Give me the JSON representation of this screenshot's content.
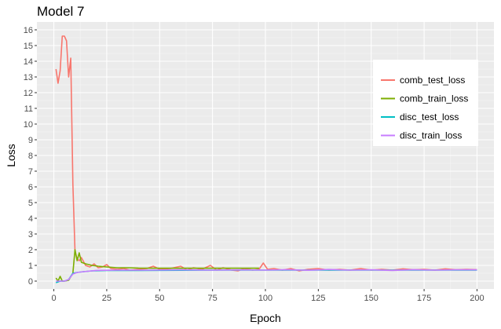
{
  "chart_data": {
    "type": "line",
    "title": "Model 7",
    "xlabel": "Epoch",
    "ylabel": "Loss",
    "xlim": [
      -8,
      208
    ],
    "ylim": [
      -0.5,
      16.5
    ],
    "x_ticks": [
      0,
      25,
      50,
      75,
      100,
      125,
      150,
      175,
      200
    ],
    "y_ticks": [
      0,
      1,
      2,
      3,
      4,
      5,
      6,
      7,
      8,
      9,
      10,
      11,
      12,
      13,
      14,
      15,
      16
    ],
    "grid": true,
    "legend_position": "right",
    "background": "#ebebeb",
    "series": [
      {
        "name": "comb_test_loss",
        "color": "#f8766d",
        "points": [
          [
            1,
            13.5
          ],
          [
            2,
            12.6
          ],
          [
            3,
            13.4
          ],
          [
            4,
            15.6
          ],
          [
            5,
            15.6
          ],
          [
            6,
            15.3
          ],
          [
            7,
            13.0
          ],
          [
            8,
            14.2
          ],
          [
            9,
            6.2
          ],
          [
            10,
            1.9
          ],
          [
            11,
            1.4
          ],
          [
            12,
            1.3
          ],
          [
            13,
            1.5
          ],
          [
            15,
            1.0
          ],
          [
            17,
            0.9
          ],
          [
            19,
            1.1
          ],
          [
            21,
            0.85
          ],
          [
            23,
            0.9
          ],
          [
            25,
            1.05
          ],
          [
            27,
            0.8
          ],
          [
            30,
            0.75
          ],
          [
            33,
            0.8
          ],
          [
            36,
            0.7
          ],
          [
            40,
            0.75
          ],
          [
            44,
            0.8
          ],
          [
            47,
            0.95
          ],
          [
            50,
            0.75
          ],
          [
            55,
            0.8
          ],
          [
            60,
            0.95
          ],
          [
            63,
            0.7
          ],
          [
            66,
            0.85
          ],
          [
            70,
            0.75
          ],
          [
            74,
            1.0
          ],
          [
            77,
            0.7
          ],
          [
            80,
            0.85
          ],
          [
            84,
            0.7
          ],
          [
            87,
            0.65
          ],
          [
            90,
            0.8
          ],
          [
            94,
            0.7
          ],
          [
            97,
            0.75
          ],
          [
            99,
            1.15
          ],
          [
            101,
            0.75
          ],
          [
            104,
            0.8
          ],
          [
            108,
            0.7
          ],
          [
            112,
            0.8
          ],
          [
            116,
            0.65
          ],
          [
            120,
            0.75
          ],
          [
            125,
            0.8
          ],
          [
            130,
            0.7
          ],
          [
            135,
            0.75
          ],
          [
            140,
            0.7
          ],
          [
            145,
            0.8
          ],
          [
            150,
            0.7
          ],
          [
            155,
            0.75
          ],
          [
            160,
            0.7
          ],
          [
            165,
            0.78
          ],
          [
            170,
            0.72
          ],
          [
            175,
            0.75
          ],
          [
            180,
            0.7
          ],
          [
            185,
            0.78
          ],
          [
            190,
            0.72
          ],
          [
            195,
            0.75
          ],
          [
            200,
            0.73
          ]
        ]
      },
      {
        "name": "comb_train_loss",
        "color": "#7cae00",
        "points": [
          [
            1,
            0.2
          ],
          [
            2,
            0.0
          ],
          [
            3,
            0.3
          ],
          [
            4,
            0.0
          ],
          [
            5,
            0.0
          ],
          [
            7,
            0.05
          ],
          [
            9,
            0.5
          ],
          [
            10,
            2.0
          ],
          [
            11,
            1.3
          ],
          [
            12,
            1.8
          ],
          [
            13,
            1.2
          ],
          [
            15,
            1.1
          ],
          [
            18,
            1.0
          ],
          [
            21,
            0.95
          ],
          [
            25,
            0.9
          ],
          [
            30,
            0.85
          ],
          [
            35,
            0.85
          ],
          [
            40,
            0.83
          ],
          [
            50,
            0.82
          ],
          [
            60,
            0.82
          ],
          [
            70,
            0.82
          ],
          [
            80,
            0.82
          ],
          [
            90,
            0.82
          ],
          [
            97,
            0.82
          ]
        ]
      },
      {
        "name": "disc_test_loss",
        "color": "#00bfc4",
        "points": [
          [
            1,
            -0.1
          ],
          [
            3,
            0.0
          ],
          [
            5,
            0.0
          ],
          [
            7,
            0.1
          ],
          [
            9,
            0.5
          ],
          [
            11,
            0.55
          ],
          [
            14,
            0.6
          ],
          [
            18,
            0.65
          ],
          [
            25,
            0.68
          ],
          [
            40,
            0.68
          ],
          [
            60,
            0.69
          ],
          [
            80,
            0.7
          ],
          [
            100,
            0.7
          ],
          [
            130,
            0.7
          ],
          [
            160,
            0.7
          ],
          [
            200,
            0.7
          ]
        ]
      },
      {
        "name": "disc_train_loss",
        "color": "#c77cff",
        "points": [
          [
            1,
            0.0
          ],
          [
            3,
            0.0
          ],
          [
            5,
            0.0
          ],
          [
            7,
            0.1
          ],
          [
            9,
            0.45
          ],
          [
            11,
            0.55
          ],
          [
            14,
            0.6
          ],
          [
            20,
            0.68
          ],
          [
            30,
            0.7
          ],
          [
            45,
            0.7
          ],
          [
            60,
            0.72
          ],
          [
            75,
            0.7
          ],
          [
            90,
            0.72
          ],
          [
            100,
            0.7
          ],
          [
            110,
            0.73
          ],
          [
            120,
            0.69
          ],
          [
            130,
            0.74
          ],
          [
            140,
            0.7
          ],
          [
            150,
            0.72
          ],
          [
            160,
            0.68
          ],
          [
            170,
            0.73
          ],
          [
            180,
            0.7
          ],
          [
            190,
            0.72
          ],
          [
            200,
            0.72
          ]
        ]
      }
    ]
  }
}
